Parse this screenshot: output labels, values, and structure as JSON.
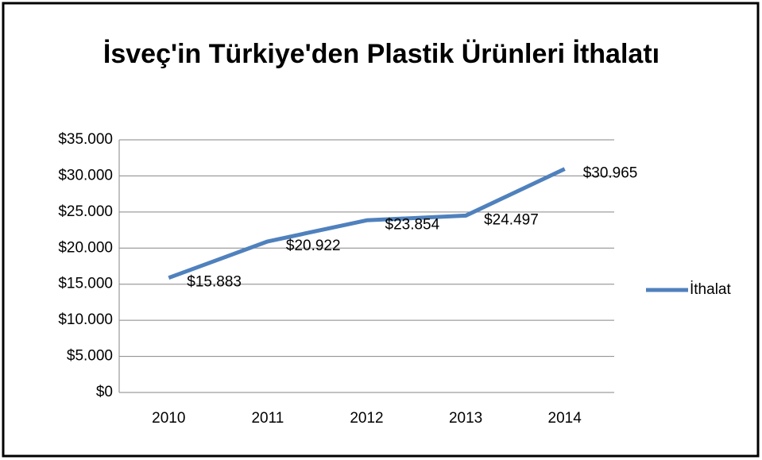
{
  "chart_data": {
    "type": "line",
    "title": "İsveç'in Türkiye'den Plastik Ürünleri İthalatı",
    "categories": [
      "2010",
      "2011",
      "2012",
      "2013",
      "2014"
    ],
    "series": [
      {
        "name": "İthalat",
        "color": "#4f81bd",
        "values": [
          15883,
          20922,
          23854,
          24497,
          30965
        ],
        "value_labels": [
          "$15.883",
          "$20.922",
          "$23.854",
          "$24.497",
          "$30.965"
        ]
      }
    ],
    "ylim": [
      0,
      35000
    ],
    "yticks": [
      {
        "value": 0,
        "label": "$0"
      },
      {
        "value": 5000,
        "label": "$5.000"
      },
      {
        "value": 10000,
        "label": "$10.000"
      },
      {
        "value": 15000,
        "label": "$15.000"
      },
      {
        "value": 20000,
        "label": "$20.000"
      },
      {
        "value": 25000,
        "label": "$25.000"
      },
      {
        "value": 30000,
        "label": "$30.000"
      },
      {
        "value": 35000,
        "label": "$35.000"
      }
    ],
    "grid": true,
    "legend": "right"
  }
}
